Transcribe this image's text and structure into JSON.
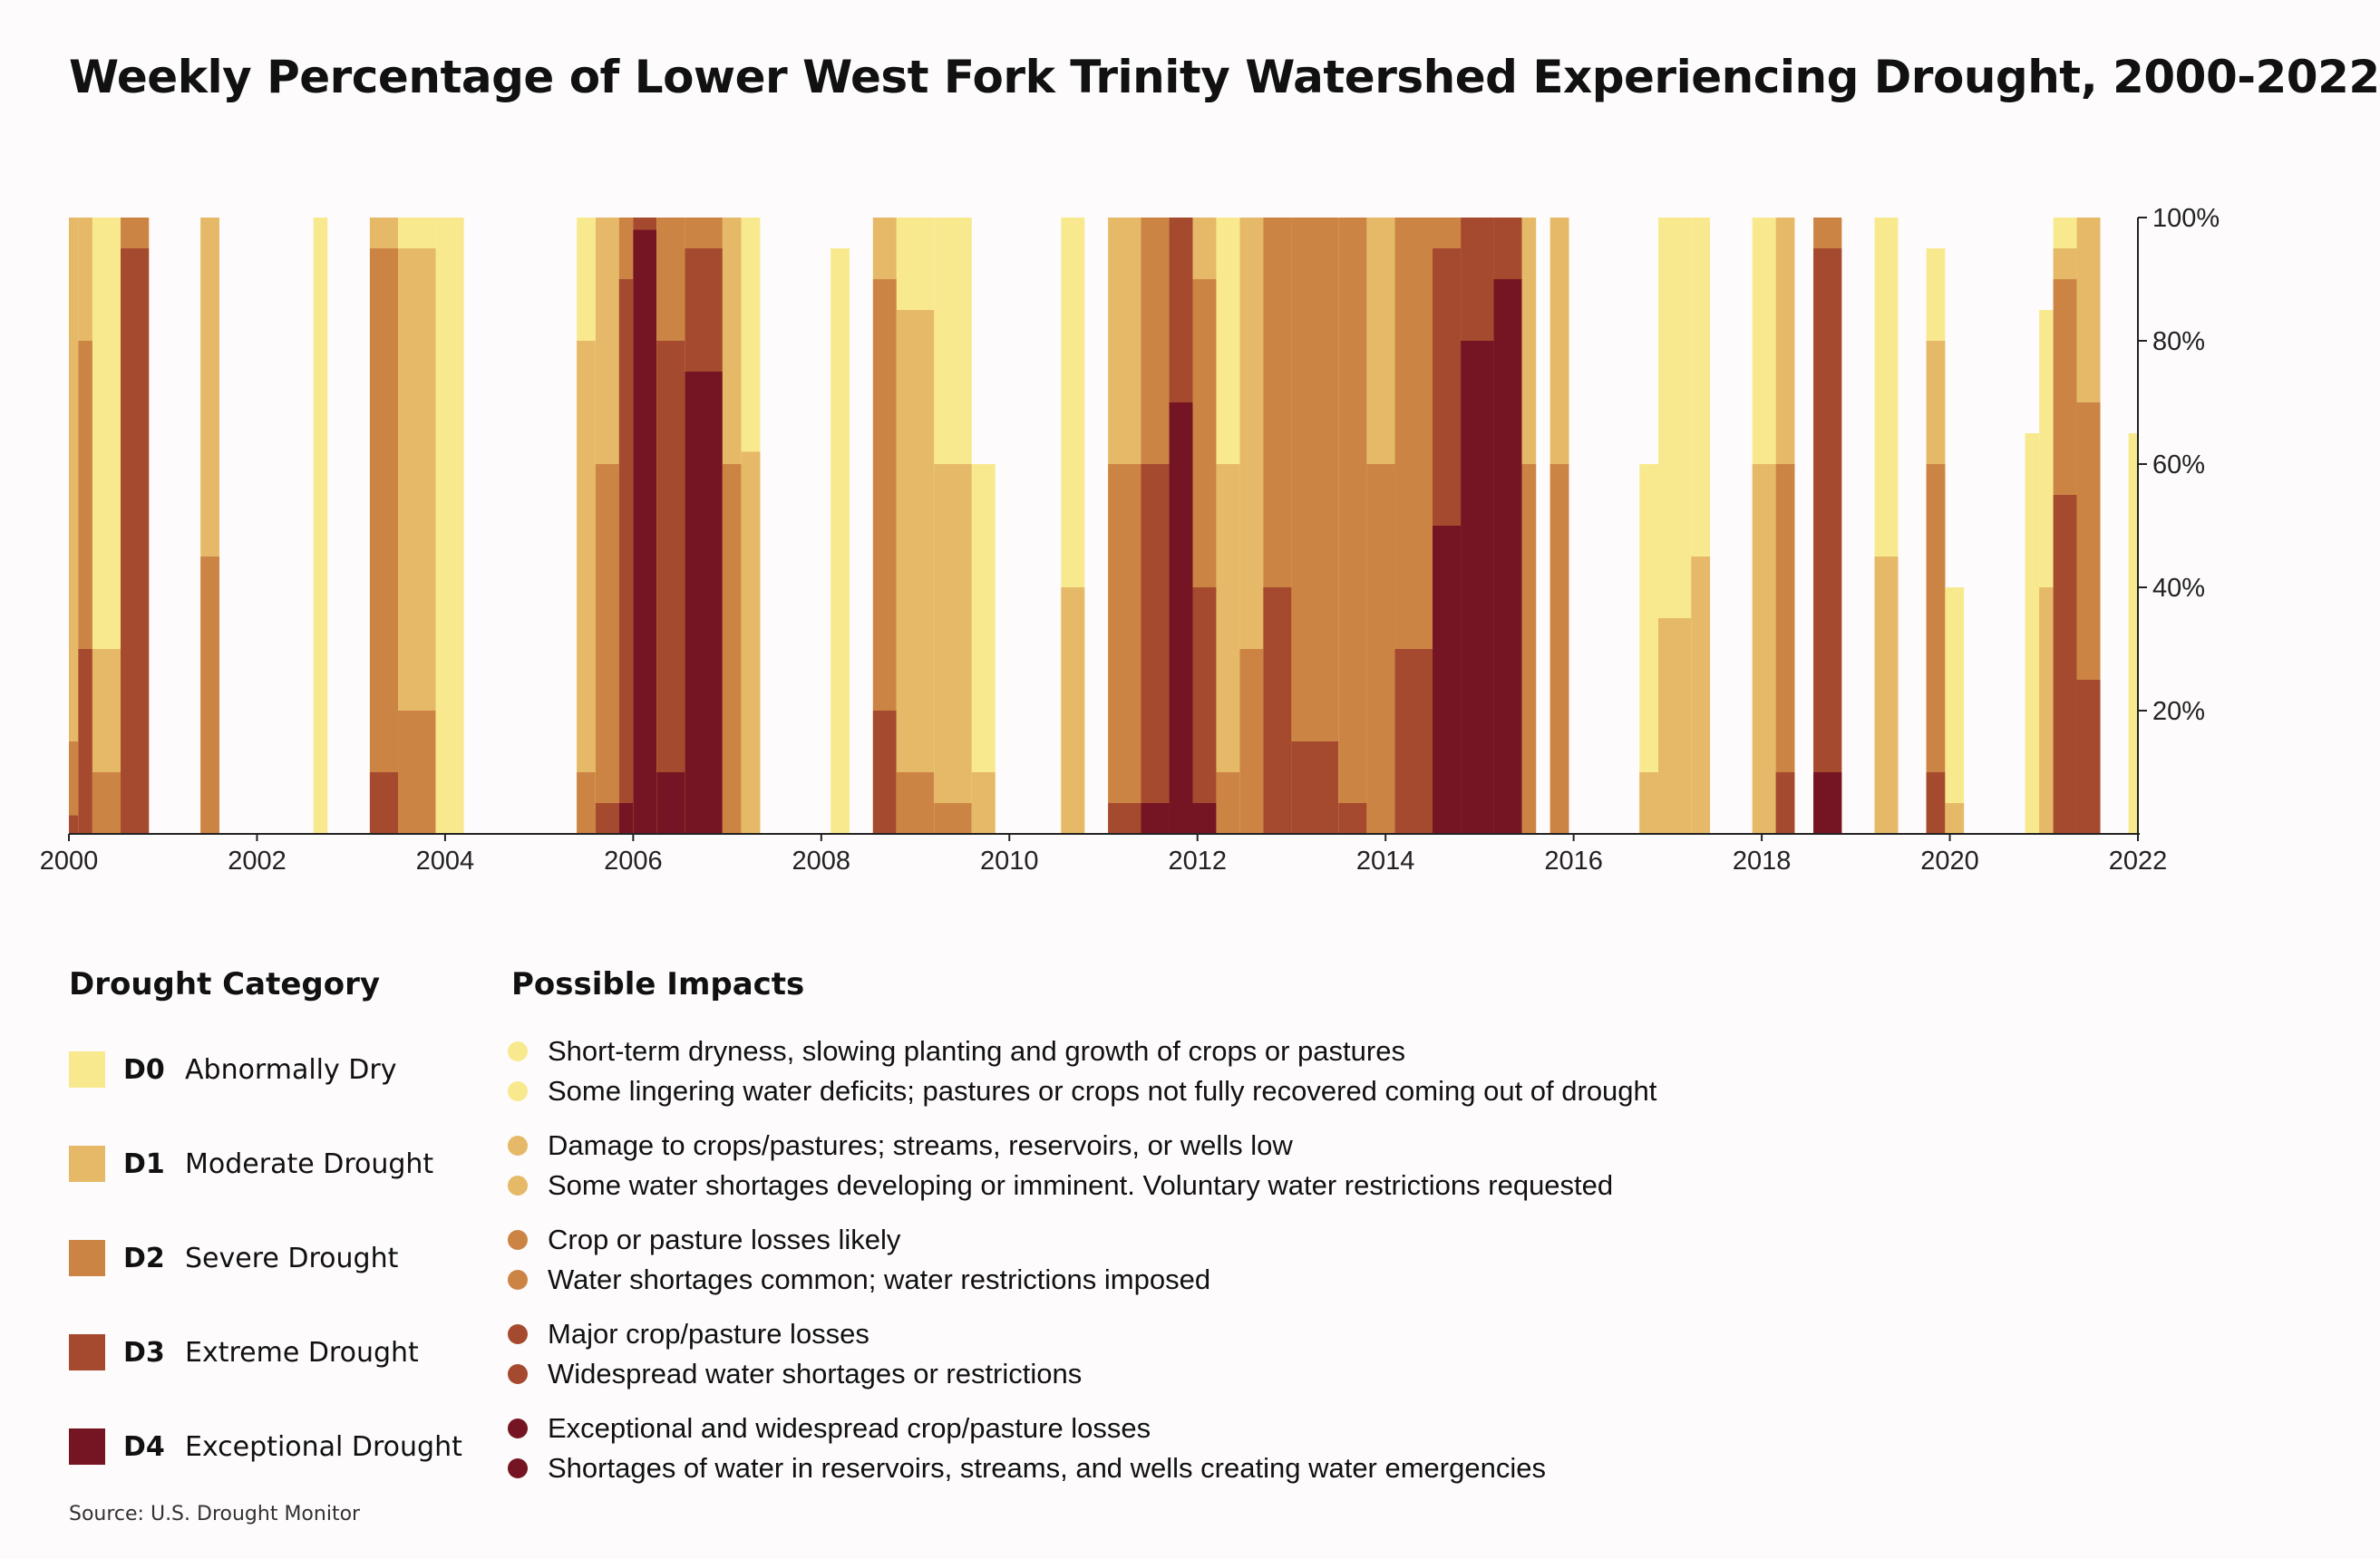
{
  "title": "Weekly Percentage of Lower West Fork Trinity Watershed Experiencing Drought, 2000-2022",
  "source": "Source: U.S. Drought Monitor",
  "colors": {
    "D0": "#f9e98e",
    "D1": "#e5b968",
    "D2": "#cc8445",
    "D3": "#a54a2e",
    "D4": "#751422",
    "axis": "#222222",
    "background": "#fdfbfb"
  },
  "chart_data": {
    "type": "area",
    "title": "Weekly Percentage of Lower West Fork Trinity Watershed Experiencing Drought, 2000-2022",
    "xlabel": "",
    "ylabel": "",
    "xlim": [
      2000,
      2022
    ],
    "ylim": [
      0,
      100
    ],
    "x_ticks": [
      "2000",
      "2002",
      "2004",
      "2006",
      "2008",
      "2010",
      "2012",
      "2014",
      "2016",
      "2018",
      "2020",
      "2022"
    ],
    "y_ticks": [
      "20%",
      "40%",
      "60%",
      "80%",
      "100%"
    ],
    "y_axis_side": "right",
    "stacking": "cumulative coverage, D0 includes D1-D4",
    "categories": [
      "D0",
      "D1",
      "D2",
      "D3",
      "D4"
    ],
    "episodes": [
      {
        "start": 2000.0,
        "end": 2000.1,
        "D0": 100,
        "D1": 100,
        "D2": 15,
        "D3": 3,
        "D4": 0
      },
      {
        "start": 2000.1,
        "end": 2000.25,
        "D0": 100,
        "D1": 100,
        "D2": 80,
        "D3": 30,
        "D4": 0
      },
      {
        "start": 2000.25,
        "end": 2000.55,
        "D0": 100,
        "D1": 30,
        "D2": 10,
        "D3": 0,
        "D4": 0
      },
      {
        "start": 2000.55,
        "end": 2000.85,
        "D0": 100,
        "D1": 100,
        "D2": 100,
        "D3": 95,
        "D4": 0
      },
      {
        "start": 2001.4,
        "end": 2001.6,
        "D0": 100,
        "D1": 100,
        "D2": 45,
        "D3": 0,
        "D4": 0
      },
      {
        "start": 2002.6,
        "end": 2002.75,
        "D0": 100,
        "D1": 0,
        "D2": 0,
        "D3": 0,
        "D4": 0
      },
      {
        "start": 2003.2,
        "end": 2003.5,
        "D0": 100,
        "D1": 100,
        "D2": 95,
        "D3": 10,
        "D4": 0
      },
      {
        "start": 2003.5,
        "end": 2003.9,
        "D0": 100,
        "D1": 95,
        "D2": 20,
        "D3": 0,
        "D4": 0
      },
      {
        "start": 2003.9,
        "end": 2004.2,
        "D0": 100,
        "D1": 0,
        "D2": 0,
        "D3": 0,
        "D4": 0
      },
      {
        "start": 2005.4,
        "end": 2005.6,
        "D0": 100,
        "D1": 80,
        "D2": 10,
        "D3": 0,
        "D4": 0
      },
      {
        "start": 2005.6,
        "end": 2005.85,
        "D0": 100,
        "D1": 100,
        "D2": 60,
        "D3": 5,
        "D4": 0
      },
      {
        "start": 2005.85,
        "end": 2006.0,
        "D0": 100,
        "D1": 100,
        "D2": 100,
        "D3": 90,
        "D4": 5
      },
      {
        "start": 2006.0,
        "end": 2006.25,
        "D0": 100,
        "D1": 100,
        "D2": 100,
        "D3": 100,
        "D4": 98
      },
      {
        "start": 2006.25,
        "end": 2006.55,
        "D0": 100,
        "D1": 100,
        "D2": 100,
        "D3": 80,
        "D4": 10
      },
      {
        "start": 2006.55,
        "end": 2006.95,
        "D0": 100,
        "D1": 100,
        "D2": 100,
        "D3": 95,
        "D4": 75
      },
      {
        "start": 2006.95,
        "end": 2007.15,
        "D0": 100,
        "D1": 100,
        "D2": 60,
        "D3": 0,
        "D4": 0
      },
      {
        "start": 2007.15,
        "end": 2007.35,
        "D0": 100,
        "D1": 62,
        "D2": 0,
        "D3": 0,
        "D4": 0
      },
      {
        "start": 2008.1,
        "end": 2008.3,
        "D0": 95,
        "D1": 0,
        "D2": 0,
        "D3": 0,
        "D4": 0
      },
      {
        "start": 2008.55,
        "end": 2008.8,
        "D0": 100,
        "D1": 100,
        "D2": 90,
        "D3": 20,
        "D4": 0
      },
      {
        "start": 2008.8,
        "end": 2009.2,
        "D0": 100,
        "D1": 85,
        "D2": 10,
        "D3": 0,
        "D4": 0
      },
      {
        "start": 2009.2,
        "end": 2009.6,
        "D0": 100,
        "D1": 60,
        "D2": 5,
        "D3": 0,
        "D4": 0
      },
      {
        "start": 2009.6,
        "end": 2009.85,
        "D0": 60,
        "D1": 10,
        "D2": 0,
        "D3": 0,
        "D4": 0
      },
      {
        "start": 2010.55,
        "end": 2010.8,
        "D0": 100,
        "D1": 40,
        "D2": 0,
        "D3": 0,
        "D4": 0
      },
      {
        "start": 2011.05,
        "end": 2011.4,
        "D0": 100,
        "D1": 100,
        "D2": 60,
        "D3": 5,
        "D4": 0
      },
      {
        "start": 2011.4,
        "end": 2011.7,
        "D0": 100,
        "D1": 100,
        "D2": 100,
        "D3": 60,
        "D4": 5
      },
      {
        "start": 2011.7,
        "end": 2011.95,
        "D0": 100,
        "D1": 100,
        "D2": 100,
        "D3": 100,
        "D4": 70
      },
      {
        "start": 2011.95,
        "end": 2012.2,
        "D0": 100,
        "D1": 100,
        "D2": 90,
        "D3": 40,
        "D4": 5
      },
      {
        "start": 2012.2,
        "end": 2012.45,
        "D0": 100,
        "D1": 60,
        "D2": 10,
        "D3": 0,
        "D4": 0
      },
      {
        "start": 2012.45,
        "end": 2012.7,
        "D0": 100,
        "D1": 100,
        "D2": 30,
        "D3": 0,
        "D4": 0
      },
      {
        "start": 2012.7,
        "end": 2013.0,
        "D0": 100,
        "D1": 100,
        "D2": 100,
        "D3": 40,
        "D4": 0
      },
      {
        "start": 2013.0,
        "end": 2013.5,
        "D0": 100,
        "D1": 100,
        "D2": 100,
        "D3": 15,
        "D4": 0
      },
      {
        "start": 2013.5,
        "end": 2013.8,
        "D0": 100,
        "D1": 100,
        "D2": 100,
        "D3": 5,
        "D4": 0
      },
      {
        "start": 2013.8,
        "end": 2014.1,
        "D0": 100,
        "D1": 100,
        "D2": 60,
        "D3": 0,
        "D4": 0
      },
      {
        "start": 2014.1,
        "end": 2014.5,
        "D0": 100,
        "D1": 100,
        "D2": 100,
        "D3": 30,
        "D4": 0
      },
      {
        "start": 2014.5,
        "end": 2014.8,
        "D0": 100,
        "D1": 100,
        "D2": 100,
        "D3": 95,
        "D4": 50
      },
      {
        "start": 2014.8,
        "end": 2015.15,
        "D0": 100,
        "D1": 100,
        "D2": 100,
        "D3": 100,
        "D4": 80
      },
      {
        "start": 2015.15,
        "end": 2015.45,
        "D0": 100,
        "D1": 100,
        "D2": 100,
        "D3": 100,
        "D4": 90
      },
      {
        "start": 2015.45,
        "end": 2015.6,
        "D0": 100,
        "D1": 100,
        "D2": 60,
        "D3": 0,
        "D4": 0
      },
      {
        "start": 2015.75,
        "end": 2015.95,
        "D0": 100,
        "D1": 100,
        "D2": 60,
        "D3": 0,
        "D4": 0
      },
      {
        "start": 2016.7,
        "end": 2016.9,
        "D0": 60,
        "D1": 10,
        "D2": 0,
        "D3": 0,
        "D4": 0
      },
      {
        "start": 2016.9,
        "end": 2017.25,
        "D0": 100,
        "D1": 35,
        "D2": 0,
        "D3": 0,
        "D4": 0
      },
      {
        "start": 2017.25,
        "end": 2017.45,
        "D0": 100,
        "D1": 45,
        "D2": 0,
        "D3": 0,
        "D4": 0
      },
      {
        "start": 2017.9,
        "end": 2018.15,
        "D0": 100,
        "D1": 60,
        "D2": 0,
        "D3": 0,
        "D4": 0
      },
      {
        "start": 2018.15,
        "end": 2018.35,
        "D0": 100,
        "D1": 100,
        "D2": 60,
        "D3": 10,
        "D4": 0
      },
      {
        "start": 2018.55,
        "end": 2018.85,
        "D0": 100,
        "D1": 100,
        "D2": 100,
        "D3": 95,
        "D4": 10
      },
      {
        "start": 2019.2,
        "end": 2019.45,
        "D0": 100,
        "D1": 45,
        "D2": 0,
        "D3": 0,
        "D4": 0
      },
      {
        "start": 2019.75,
        "end": 2019.95,
        "D0": 95,
        "D1": 80,
        "D2": 60,
        "D3": 10,
        "D4": 0
      },
      {
        "start": 2019.95,
        "end": 2020.15,
        "D0": 40,
        "D1": 5,
        "D2": 0,
        "D3": 0,
        "D4": 0
      },
      {
        "start": 2020.8,
        "end": 2020.95,
        "D0": 65,
        "D1": 0,
        "D2": 0,
        "D3": 0,
        "D4": 0
      },
      {
        "start": 2020.95,
        "end": 2021.1,
        "D0": 85,
        "D1": 40,
        "D2": 0,
        "D3": 0,
        "D4": 0
      },
      {
        "start": 2021.1,
        "end": 2021.35,
        "D0": 100,
        "D1": 95,
        "D2": 90,
        "D3": 55,
        "D4": 0
      },
      {
        "start": 2021.35,
        "end": 2021.6,
        "D0": 100,
        "D1": 100,
        "D2": 70,
        "D3": 25,
        "D4": 0
      },
      {
        "start": 2021.9,
        "end": 2022.0,
        "D0": 65,
        "D1": 0,
        "D2": 0,
        "D3": 0,
        "D4": 0
      }
    ]
  },
  "legend": {
    "category_heading": "Drought Category",
    "impacts_heading": "Possible Impacts",
    "categories": [
      {
        "code": "D0",
        "name": "Abnormally Dry",
        "color": "#f9e98e"
      },
      {
        "code": "D1",
        "name": "Moderate Drought",
        "color": "#e5b968"
      },
      {
        "code": "D2",
        "name": "Severe Drought",
        "color": "#cc8445"
      },
      {
        "code": "D3",
        "name": "Extreme Drought",
        "color": "#a54a2e"
      },
      {
        "code": "D4",
        "name": "Exceptional Drought",
        "color": "#751422"
      }
    ],
    "impacts": [
      {
        "category": "D0",
        "text": "Short-term dryness, slowing planting and growth of crops or pastures"
      },
      {
        "category": "D0",
        "text": "Some lingering water deficits; pastures or crops not fully recovered coming out of drought"
      },
      {
        "category": "D1",
        "text": "Damage to crops/pastures; streams, reservoirs, or wells low"
      },
      {
        "category": "D1",
        "text": "Some water shortages developing or imminent. Voluntary water restrictions requested"
      },
      {
        "category": "D2",
        "text": "Crop or pasture losses likely"
      },
      {
        "category": "D2",
        "text": "Water shortages common; water restrictions imposed"
      },
      {
        "category": "D3",
        "text": "Major crop/pasture losses"
      },
      {
        "category": "D3",
        "text": "Widespread water shortages or restrictions"
      },
      {
        "category": "D4",
        "text": "Exceptional and widespread crop/pasture losses"
      },
      {
        "category": "D4",
        "text": "Shortages of water in reservoirs, streams, and wells creating water emergencies"
      }
    ]
  }
}
